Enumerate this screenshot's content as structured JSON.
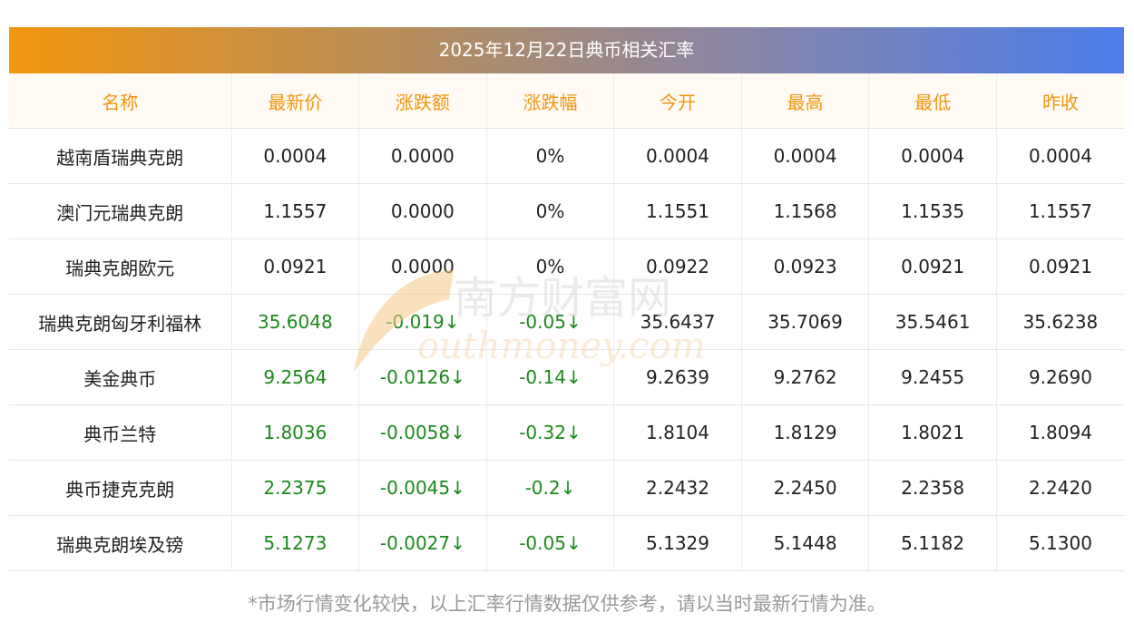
{
  "title": "2025年12月22日典币相关汇率",
  "headers": [
    "名称",
    "最新价",
    "涨跌额",
    "涨跌幅",
    "今开",
    "最高",
    "最低",
    "昨收"
  ],
  "rows": [
    {
      "name": "越南盾瑞典克朗",
      "latest": "0.0004",
      "change": "0.0000",
      "pct": "0%",
      "open": "0.0004",
      "high": "0.0004",
      "low": "0.0004",
      "prev": "0.0004",
      "down": false
    },
    {
      "name": "澳门元瑞典克朗",
      "latest": "1.1557",
      "change": "0.0000",
      "pct": "0%",
      "open": "1.1551",
      "high": "1.1568",
      "low": "1.1535",
      "prev": "1.1557",
      "down": false
    },
    {
      "name": "瑞典克朗欧元",
      "latest": "0.0921",
      "change": "0.0000",
      "pct": "0%",
      "open": "0.0922",
      "high": "0.0923",
      "low": "0.0921",
      "prev": "0.0921",
      "down": false
    },
    {
      "name": "瑞典克朗匈牙利福林",
      "latest": "35.6048",
      "change": "-0.019↓",
      "pct": "-0.05↓",
      "open": "35.6437",
      "high": "35.7069",
      "low": "35.5461",
      "prev": "35.6238",
      "down": true
    },
    {
      "name": "美金典币",
      "latest": "9.2564",
      "change": "-0.0126↓",
      "pct": "-0.14↓",
      "open": "9.2639",
      "high": "9.2762",
      "low": "9.2455",
      "prev": "9.2690",
      "down": true
    },
    {
      "name": "典币兰特",
      "latest": "1.8036",
      "change": "-0.0058↓",
      "pct": "-0.32↓",
      "open": "1.8104",
      "high": "1.8129",
      "low": "1.8021",
      "prev": "1.8094",
      "down": true
    },
    {
      "name": "典币捷克克朗",
      "latest": "2.2375",
      "change": "-0.0045↓",
      "pct": "-0.2↓",
      "open": "2.2432",
      "high": "2.2450",
      "low": "2.2358",
      "prev": "2.2420",
      "down": true
    },
    {
      "name": "瑞典克朗埃及镑",
      "latest": "5.1273",
      "change": "-0.0027↓",
      "pct": "-0.05↓",
      "open": "5.1329",
      "high": "5.1448",
      "low": "5.1182",
      "prev": "5.1300",
      "down": true
    }
  ],
  "note": "*市场行情变化较快，以上汇率行情数据仅供参考，请以当时最新行情为准。",
  "watermark": {
    "cn": "南方财富网",
    "en": "outhmoney.com"
  },
  "colors": {
    "header_text": "#f0960f",
    "down": "#1a8a1a",
    "title_start": "#f2960e",
    "title_end": "#4d7cea"
  }
}
